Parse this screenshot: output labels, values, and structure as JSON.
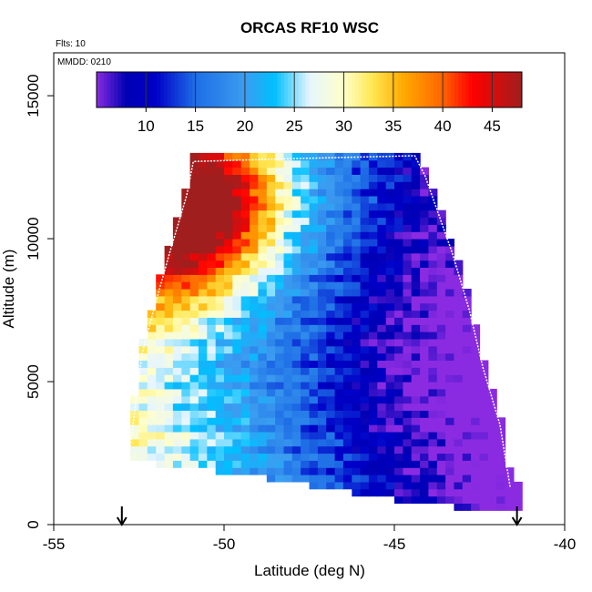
{
  "chart_data": {
    "type": "heatmap",
    "title": "ORCAS RF10 WSC",
    "annotations": {
      "flts": "Flts: 10",
      "mmdd": "MMDD: 0210"
    },
    "xlabel": "Latitude (deg N)",
    "ylabel": "Altitude (m)",
    "xlim": [
      -55,
      -40
    ],
    "ylim": [
      0,
      16500
    ],
    "xticks": [
      -55,
      -50,
      -45,
      -40
    ],
    "yticks": [
      0,
      5000,
      10000,
      15000
    ],
    "colorbar": {
      "min": 5,
      "max": 48,
      "ticks": [
        10,
        15,
        20,
        25,
        30,
        35,
        40,
        45
      ],
      "dividers": [
        5,
        10,
        15,
        20,
        25,
        30,
        35,
        40,
        45,
        48
      ],
      "stops": [
        {
          "v": 5,
          "c": "#8a2be2"
        },
        {
          "v": 8,
          "c": "#0000b4"
        },
        {
          "v": 11,
          "c": "#0000c8"
        },
        {
          "v": 15,
          "c": "#1e6ee6"
        },
        {
          "v": 20,
          "c": "#3c9cf0"
        },
        {
          "v": 23,
          "c": "#00bfff"
        },
        {
          "v": 26.5,
          "c": "#e6f5ff"
        },
        {
          "v": 30,
          "c": "#ffffc8"
        },
        {
          "v": 33,
          "c": "#ffe650"
        },
        {
          "v": 36,
          "c": "#ffaa00"
        },
        {
          "v": 40,
          "c": "#ff6400"
        },
        {
          "v": 43,
          "c": "#ff0000"
        },
        {
          "v": 48,
          "c": "#a01e1e"
        }
      ]
    },
    "grid": false,
    "legend": "colorbar top",
    "data_envelope": {
      "left_edge": [
        [
          -52.8,
          2300
        ],
        [
          -52.6,
          4200
        ],
        [
          -52.4,
          6000
        ],
        [
          -52.0,
          7800
        ],
        [
          -51.6,
          9500
        ],
        [
          -51.1,
          11500
        ],
        [
          -50.9,
          12700
        ]
      ],
      "right_edge": [
        [
          -44.4,
          12900
        ],
        [
          -44.1,
          12200
        ],
        [
          -43.3,
          9500
        ],
        [
          -42.8,
          7500
        ],
        [
          -42.4,
          5500
        ],
        [
          -41.9,
          3500
        ],
        [
          -41.6,
          1300
        ]
      ],
      "bottom_edge": [
        [
          -52.8,
          2300
        ],
        [
          -51.0,
          2000
        ],
        [
          -49.0,
          1700
        ],
        [
          -47.0,
          1300
        ],
        [
          -45.0,
          900
        ],
        [
          -43.0,
          600
        ],
        [
          -41.6,
          500
        ]
      ]
    },
    "flight_track": [
      [
        -52.8,
        2300
      ],
      [
        -52.6,
        4200
      ],
      [
        -52.4,
        6000
      ],
      [
        -52.0,
        7800
      ],
      [
        -51.6,
        9500
      ],
      [
        -51.1,
        11500
      ],
      [
        -50.9,
        12700
      ],
      [
        -48.0,
        12800
      ],
      [
        -44.4,
        12900
      ],
      [
        -44.1,
        12200
      ],
      [
        -43.3,
        9500
      ],
      [
        -42.8,
        7500
      ],
      [
        -42.4,
        5500
      ],
      [
        -41.9,
        3500
      ],
      [
        -41.6,
        1300
      ]
    ],
    "markers": [
      {
        "type": "down-arrow",
        "x": -53.0,
        "y": 0
      },
      {
        "type": "down-arrow",
        "x": -41.4,
        "y": 0
      }
    ],
    "field_description": {
      "lat_grid_step": 0.25,
      "alt_grid_step": 250,
      "summary": "Mean wind speed (m/s) roughly 40-48 near -51 deg at 10000-12500 m, decreasing toward ~7-10 south of -44 deg; 15-25 near the surface in the west."
    }
  }
}
